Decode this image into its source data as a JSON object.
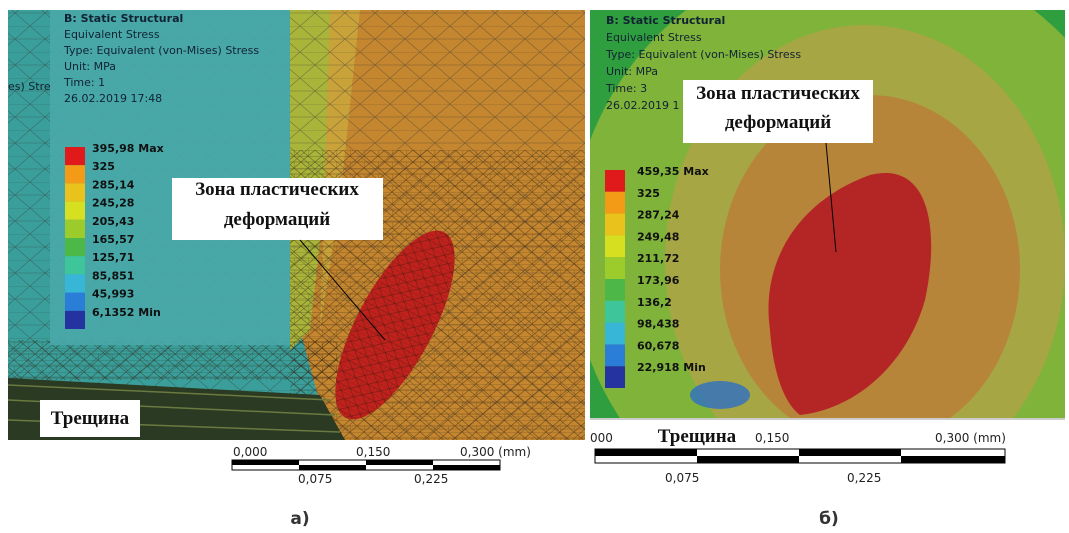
{
  "panels": [
    {
      "header": [
        "B: Static Structural",
        "Equivalent Stress",
        "Type: Equivalent (von-Mises) Stress",
        "Unit: MPa",
        "Time: 1",
        "26.02.2019 17:48"
      ],
      "side_fragment": "es) Stre",
      "legend": [
        "395,98 Max",
        "325",
        "285,14",
        "245,28",
        "205,43",
        "165,57",
        "125,71",
        "85,851",
        "45,993",
        "6,1352 Min"
      ],
      "annotation": [
        "Зона пластических",
        "деформаций"
      ],
      "crack_label": "Трещина",
      "scale_top": [
        "0,000",
        "0,150",
        "0,300 (mm)"
      ],
      "scale_bottom": [
        "0,075",
        "0,225"
      ],
      "caption": "а)"
    },
    {
      "header": [
        "B: Static Structural",
        "Equivalent Stress",
        "Type: Equivalent (von-Mises) Stress",
        "Unit: MPa",
        "Time: 3",
        "26.02.2019 1"
      ],
      "legend": [
        "459,35 Max",
        "325",
        "287,24",
        "249,48",
        "211,72",
        "173,96",
        "136,2",
        "98,438",
        "60,678",
        "22,918 Min"
      ],
      "annotation": [
        "Зона пластических",
        "деформаций"
      ],
      "crack_label": "Трещина",
      "scale_top": [
        "000",
        "0,150",
        "0,300 (mm)"
      ],
      "scale_bottom": [
        "0,075",
        "0,225"
      ],
      "caption": "б)"
    }
  ]
}
